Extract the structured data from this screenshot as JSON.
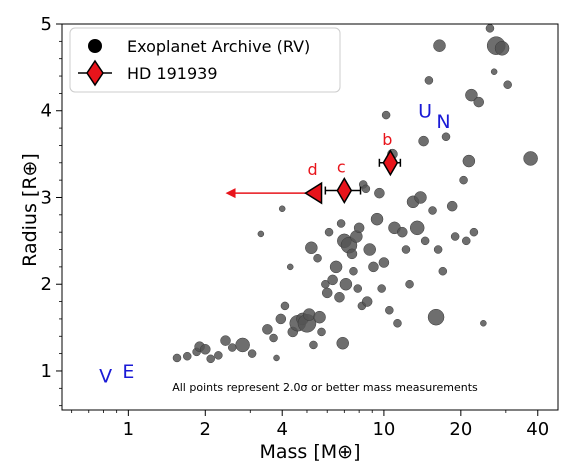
{
  "chart_data": {
    "type": "scatter",
    "xlabel": "Mass [M⊕]",
    "ylabel": "Radius [R⊕]",
    "xscale": "log",
    "xlim": [
      0.55,
      48
    ],
    "ylim": [
      0.55,
      5.0
    ],
    "xticks": [
      1,
      2,
      4,
      10,
      20,
      40
    ],
    "yticks": [
      1,
      2,
      3,
      4,
      5
    ],
    "grid": false,
    "legend_position": "top-left",
    "note": "All points represent 2.0σ or better mass measurements",
    "colors": {
      "archive": "#555555",
      "hd": "#e8141b",
      "solar": "#1a1ad6"
    },
    "series": [
      {
        "name": "Exoplanet Archive (RV)",
        "marker": "circle",
        "points": [
          [
            1.55,
            1.15,
            4
          ],
          [
            1.7,
            1.17,
            4
          ],
          [
            1.85,
            1.22,
            4
          ],
          [
            1.9,
            1.28,
            5
          ],
          [
            2.0,
            1.25,
            5
          ],
          [
            2.1,
            1.14,
            4
          ],
          [
            2.25,
            1.18,
            4
          ],
          [
            2.4,
            1.35,
            5
          ],
          [
            2.55,
            1.27,
            4
          ],
          [
            2.8,
            1.3,
            7
          ],
          [
            3.05,
            1.2,
            4
          ],
          [
            3.3,
            2.58,
            3
          ],
          [
            3.5,
            1.48,
            5
          ],
          [
            3.7,
            1.38,
            4
          ],
          [
            3.8,
            1.15,
            3
          ],
          [
            3.95,
            1.6,
            5
          ],
          [
            4.0,
            2.87,
            3
          ],
          [
            4.1,
            1.75,
            4
          ],
          [
            4.3,
            2.2,
            3
          ],
          [
            4.4,
            1.45,
            5
          ],
          [
            4.6,
            1.55,
            8
          ],
          [
            4.8,
            1.6,
            6
          ],
          [
            5.0,
            1.55,
            9
          ],
          [
            5.1,
            1.65,
            6
          ],
          [
            5.2,
            2.42,
            6
          ],
          [
            5.3,
            1.3,
            4
          ],
          [
            5.5,
            2.3,
            4
          ],
          [
            5.6,
            1.62,
            6
          ],
          [
            5.7,
            1.45,
            4
          ],
          [
            5.9,
            2.0,
            4
          ],
          [
            6.0,
            1.9,
            5
          ],
          [
            6.1,
            2.6,
            4
          ],
          [
            6.3,
            2.05,
            5
          ],
          [
            6.5,
            2.2,
            6
          ],
          [
            6.7,
            1.85,
            5
          ],
          [
            6.8,
            2.7,
            4
          ],
          [
            6.9,
            1.32,
            6
          ],
          [
            7.0,
            2.5,
            7
          ],
          [
            7.1,
            2.0,
            6
          ],
          [
            7.3,
            2.45,
            8
          ],
          [
            7.5,
            2.35,
            5
          ],
          [
            7.6,
            2.15,
            4
          ],
          [
            7.8,
            2.55,
            6
          ],
          [
            7.9,
            1.95,
            4
          ],
          [
            8.0,
            2.65,
            5
          ],
          [
            8.2,
            1.75,
            4
          ],
          [
            8.3,
            3.15,
            4
          ],
          [
            8.5,
            3.1,
            4
          ],
          [
            8.6,
            1.8,
            5
          ],
          [
            8.8,
            2.4,
            6
          ],
          [
            9.1,
            2.2,
            5
          ],
          [
            9.4,
            2.75,
            6
          ],
          [
            9.6,
            3.05,
            5
          ],
          [
            9.8,
            1.95,
            4
          ],
          [
            10.0,
            2.25,
            5
          ],
          [
            10.2,
            3.95,
            4
          ],
          [
            10.5,
            1.7,
            4
          ],
          [
            10.8,
            3.5,
            5
          ],
          [
            11.0,
            2.65,
            6
          ],
          [
            11.3,
            1.55,
            4
          ],
          [
            11.8,
            2.6,
            5
          ],
          [
            12.2,
            2.4,
            4
          ],
          [
            12.6,
            2.0,
            4
          ],
          [
            13.0,
            2.95,
            6
          ],
          [
            13.5,
            2.65,
            7
          ],
          [
            13.9,
            3.0,
            6
          ],
          [
            14.3,
            3.65,
            5
          ],
          [
            14.5,
            2.5,
            4
          ],
          [
            15.0,
            4.35,
            4
          ],
          [
            15.5,
            2.85,
            4
          ],
          [
            16.0,
            1.62,
            8
          ],
          [
            16.3,
            2.4,
            4
          ],
          [
            16.5,
            4.75,
            6
          ],
          [
            17.0,
            2.15,
            4
          ],
          [
            17.5,
            3.7,
            4
          ],
          [
            18.5,
            2.9,
            5
          ],
          [
            19.0,
            2.55,
            4
          ],
          [
            20.5,
            3.2,
            4
          ],
          [
            21.0,
            2.5,
            4
          ],
          [
            21.5,
            3.42,
            6
          ],
          [
            22.0,
            4.18,
            6
          ],
          [
            22.5,
            2.6,
            4
          ],
          [
            23.5,
            4.1,
            5
          ],
          [
            24.5,
            1.55,
            3
          ],
          [
            26.0,
            4.95,
            4
          ],
          [
            27.5,
            4.75,
            9
          ],
          [
            29.0,
            4.72,
            7
          ],
          [
            30.5,
            4.3,
            4
          ],
          [
            37.5,
            3.45,
            7
          ],
          [
            27.0,
            4.45,
            3
          ]
        ]
      },
      {
        "name": "HD 191939",
        "marker": "diamond",
        "planets": [
          {
            "label": "b",
            "mass": 10.6,
            "radius": 3.4,
            "mass_err": 1.0
          },
          {
            "label": "c",
            "mass": 7.0,
            "radius": 3.08,
            "mass_err": 1.1
          },
          {
            "label": "d",
            "mass": 5.4,
            "radius": 3.05,
            "upper_limit_to": 2.4
          }
        ]
      }
    ],
    "solar_system": [
      {
        "label": "V",
        "mass": 0.815,
        "radius": 0.95
      },
      {
        "label": "E",
        "mass": 1.0,
        "radius": 1.0
      },
      {
        "label": "U",
        "mass": 14.5,
        "radius": 4.0
      },
      {
        "label": "N",
        "mass": 17.1,
        "radius": 3.88
      }
    ]
  }
}
